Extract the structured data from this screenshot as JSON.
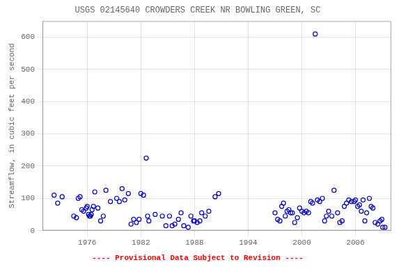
{
  "chart_data": {
    "type": "scatter",
    "title": "USGS 02145640 CROWDERS CREEK NR BOWLING GREEN, SC",
    "ylabel": "Streamflow, in cubic feet per second",
    "annotations": [
      {
        "text": "---- Provisional Data Subject to Revision ----",
        "color": "#ff0000"
      }
    ],
    "x": [
      1972.3,
      1972.7,
      1973.2,
      1974.5,
      1974.8,
      1975.0,
      1975.2,
      1975.4,
      1975.6,
      1975.9,
      1976.0,
      1976.15,
      1976.25,
      1976.35,
      1976.45,
      1976.55,
      1976.7,
      1976.85,
      1977.2,
      1977.5,
      1977.8,
      1978.1,
      1978.6,
      1979.3,
      1979.6,
      1979.9,
      1980.2,
      1980.6,
      1980.9,
      1981.2,
      1981.5,
      1981.8,
      1982.0,
      1982.3,
      1982.6,
      1982.75,
      1982.9,
      1983.6,
      1984.4,
      1984.8,
      1985.2,
      1985.5,
      1985.8,
      1986.2,
      1986.5,
      1986.8,
      1987.3,
      1987.6,
      1987.9,
      1988.0,
      1988.3,
      1988.6,
      1988.8,
      1989.2,
      1989.6,
      1990.3,
      1990.7,
      1997.0,
      1997.3,
      1997.55,
      1997.75,
      1997.95,
      1998.15,
      1998.35,
      1998.55,
      1998.75,
      1998.95,
      1999.2,
      1999.5,
      1999.75,
      2000.0,
      2000.25,
      2000.5,
      2000.75,
      2001.0,
      2001.2,
      2001.5,
      2001.75,
      2002.0,
      2002.3,
      2002.55,
      2002.75,
      2003.0,
      2003.35,
      2003.6,
      2004.0,
      2004.25,
      2004.5,
      2004.75,
      2005.0,
      2005.25,
      2005.55,
      2005.85,
      2006.0,
      2006.25,
      2006.45,
      2006.65,
      2006.85,
      2007.05,
      2007.25,
      2007.55,
      2007.75,
      2007.95,
      2008.2,
      2008.5,
      2008.75,
      2008.95,
      2009.05,
      2009.3
    ],
    "values": [
      110,
      85,
      105,
      45,
      40,
      100,
      105,
      65,
      60,
      70,
      75,
      50,
      45,
      45,
      50,
      65,
      75,
      120,
      70,
      30,
      45,
      125,
      90,
      100,
      90,
      130,
      95,
      115,
      20,
      35,
      25,
      35,
      115,
      110,
      225,
      45,
      30,
      50,
      45,
      15,
      45,
      15,
      20,
      35,
      55,
      15,
      10,
      45,
      30,
      30,
      25,
      30,
      55,
      45,
      60,
      105,
      115,
      55,
      35,
      30,
      75,
      85,
      45,
      60,
      65,
      55,
      55,
      25,
      40,
      70,
      60,
      55,
      60,
      55,
      90,
      85,
      610,
      95,
      90,
      100,
      30,
      45,
      60,
      45,
      125,
      55,
      25,
      30,
      75,
      85,
      95,
      90,
      90,
      95,
      75,
      80,
      60,
      95,
      30,
      55,
      100,
      75,
      70,
      25,
      20,
      30,
      35,
      10,
      10
    ],
    "color": "#0000CC",
    "marker": "circle",
    "xlim": [
      1971,
      2010
    ],
    "ylim": [
      0,
      650
    ],
    "xticks": [
      1976,
      1982,
      1988,
      1994,
      2000,
      2006
    ],
    "yticks": [
      0,
      100,
      200,
      300,
      400,
      500,
      600
    ],
    "grid": true
  }
}
